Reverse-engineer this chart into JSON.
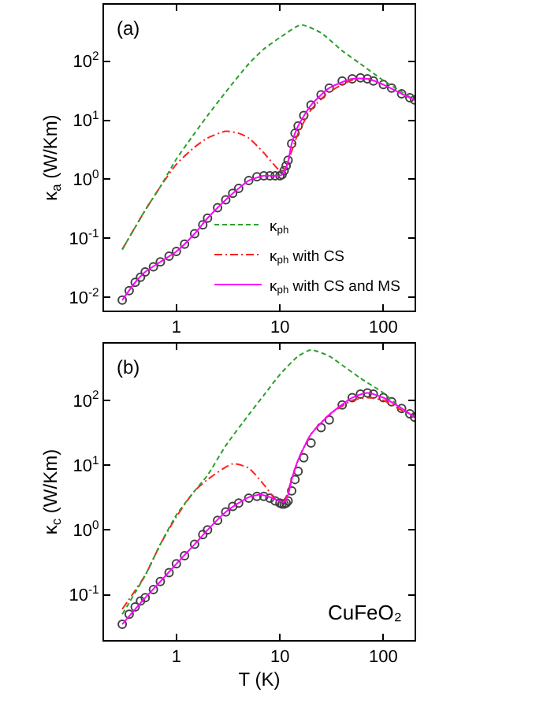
{
  "chart_data": [
    {
      "type": "line",
      "ylabel": "κ$_{a}$ (W/Km)",
      "annotations": [
        "(a)"
      ],
      "log": "xy",
      "legend": "bottom right",
      "grid": false,
      "xlim": [
        0.2,
        200
      ],
      "ylim": [
        0.006,
        900
      ],
      "xticks": [
        1,
        10,
        100
      ],
      "yticks": [
        {
          "value": 0.01,
          "label": "10$^{-2}$"
        },
        {
          "value": 0.1,
          "label": "10$^{-1}$"
        },
        {
          "value": 1,
          "label": "10$^{0}$"
        },
        {
          "value": 10,
          "label": "10$^{1}$"
        },
        {
          "value": 100,
          "label": "10$^{2}$"
        }
      ],
      "series": [
        {
          "type": "scatter",
          "marker": "circle",
          "color": "#404040",
          "x": [
            0.3,
            0.35,
            0.4,
            0.45,
            0.5,
            0.6,
            0.7,
            0.85,
            1,
            1.2,
            1.5,
            1.8,
            2,
            2.5,
            3,
            3.5,
            4,
            5,
            6,
            7,
            8,
            9,
            10,
            10.5,
            11,
            11.5,
            12,
            13,
            14,
            15,
            17,
            20,
            25,
            30,
            40,
            50,
            60,
            70,
            80,
            100,
            120,
            150,
            180,
            200
          ],
          "values": [
            0.009,
            0.013,
            0.018,
            0.022,
            0.027,
            0.033,
            0.04,
            0.05,
            0.06,
            0.08,
            0.12,
            0.17,
            0.22,
            0.33,
            0.45,
            0.58,
            0.7,
            0.95,
            1.1,
            1.15,
            1.15,
            1.15,
            1.15,
            1.2,
            1.4,
            1.7,
            2.1,
            4,
            6,
            8,
            12,
            18,
            27,
            35,
            46,
            50,
            52,
            50,
            46,
            40,
            35,
            28,
            24,
            22
          ]
        },
        {
          "name": "κ$_{ph}$",
          "color": "#2ca02c",
          "line_style": "dashed",
          "marker": "none",
          "x": [
            0.3,
            0.5,
            0.7,
            1,
            1.5,
            2,
            3,
            5,
            7,
            10,
            16,
            25,
            40,
            60,
            100,
            150,
            200
          ],
          "values": [
            0.065,
            0.3,
            0.75,
            2.2,
            6,
            12,
            30,
            90,
            160,
            250,
            410,
            300,
            150,
            90,
            47,
            30,
            22
          ]
        },
        {
          "name": "κ$_{ph}$ with CS",
          "color": "#ff2020",
          "line_style": "dotted",
          "marker": "none",
          "x": [
            0.3,
            0.5,
            0.7,
            1,
            1.5,
            2,
            3,
            4,
            5,
            7,
            10,
            11,
            13,
            15,
            20,
            30,
            50,
            70,
            100
          ],
          "values": [
            0.065,
            0.3,
            0.75,
            1.8,
            3.5,
            5,
            6.5,
            6,
            5,
            2.8,
            1.4,
            1.4,
            3,
            6,
            15,
            30,
            48,
            50,
            40
          ]
        },
        {
          "name": "κ$_{ph}$ with CS and MS",
          "color": "#ff00ff",
          "line_style": "solid",
          "marker": "none",
          "x": [
            0.3,
            0.4,
            0.5,
            0.7,
            1,
            1.5,
            2,
            3,
            4,
            5,
            7,
            10,
            11,
            12,
            13,
            15,
            20,
            30,
            50,
            70,
            100,
            150,
            200
          ],
          "values": [
            0.009,
            0.018,
            0.027,
            0.04,
            0.06,
            0.12,
            0.22,
            0.45,
            0.7,
            0.95,
            1.15,
            1.15,
            1.3,
            2,
            4,
            8,
            18,
            35,
            50,
            50,
            40,
            28,
            22
          ]
        }
      ]
    },
    {
      "type": "line",
      "xlabel": "T (K)",
      "ylabel": "κ$_{c}$ (W/Km)",
      "annotations": [
        "(b)",
        "CuFeO₂"
      ],
      "log": "xy",
      "legend": false,
      "grid": false,
      "xlim": [
        0.2,
        200
      ],
      "ylim": [
        0.02,
        750
      ],
      "xticks": [
        1,
        10,
        100
      ],
      "yticks": [
        {
          "value": 0.1,
          "label": "10$^{-1}$"
        },
        {
          "value": 1,
          "label": "10$^{0}$"
        },
        {
          "value": 10,
          "label": "10$^{1}$"
        },
        {
          "value": 100,
          "label": "10$^{2}$"
        }
      ],
      "series": [
        {
          "type": "scatter",
          "marker": "circle",
          "color": "#404040",
          "x": [
            0.3,
            0.35,
            0.4,
            0.45,
            0.5,
            0.6,
            0.7,
            0.85,
            1,
            1.2,
            1.5,
            1.8,
            2,
            2.5,
            3,
            3.5,
            4,
            5,
            6,
            7,
            8,
            9,
            10,
            10.5,
            11,
            11.5,
            12,
            13,
            14,
            15,
            17,
            20,
            25,
            30,
            40,
            50,
            60,
            70,
            80,
            100,
            120,
            150,
            180,
            200
          ],
          "values": [
            0.035,
            0.05,
            0.065,
            0.08,
            0.09,
            0.12,
            0.16,
            0.22,
            0.3,
            0.4,
            0.6,
            0.85,
            1,
            1.4,
            1.9,
            2.3,
            2.6,
            3.1,
            3.3,
            3.3,
            3.1,
            2.8,
            2.6,
            2.5,
            2.5,
            2.6,
            2.8,
            4,
            6,
            8,
            13,
            22,
            38,
            50,
            85,
            110,
            125,
            130,
            125,
            110,
            95,
            75,
            62,
            55
          ]
        },
        {
          "color": "#2ca02c",
          "line_style": "dashed",
          "marker": "none",
          "x": [
            0.3,
            0.5,
            0.7,
            1,
            1.5,
            2,
            3,
            5,
            7,
            10,
            15,
            20,
            30,
            40,
            60,
            100,
            150,
            200
          ],
          "values": [
            0.05,
            0.2,
            0.6,
            1.7,
            4,
            7,
            20,
            60,
            120,
            250,
            480,
            600,
            480,
            350,
            220,
            130,
            75,
            55
          ]
        },
        {
          "color": "#ff2020",
          "line_style": "dotted",
          "marker": "none",
          "x": [
            0.3,
            0.5,
            0.7,
            1,
            1.5,
            2,
            3.5,
            5,
            7,
            9,
            10,
            11,
            13,
            15,
            20,
            30,
            50,
            70,
            100,
            150,
            200
          ],
          "values": [
            0.06,
            0.2,
            0.6,
            1.6,
            4,
            6,
            10.5,
            9,
            5,
            3,
            2.7,
            2.8,
            6,
            12,
            30,
            60,
            100,
            110,
            100,
            70,
            55
          ]
        },
        {
          "color": "#ff00ff",
          "line_style": "solid",
          "marker": "none",
          "x": [
            0.3,
            0.5,
            0.7,
            1,
            1.5,
            2,
            3,
            4,
            5,
            6.5,
            8,
            10,
            11,
            12,
            13,
            15,
            20,
            30,
            50,
            70,
            100,
            150,
            200
          ],
          "values": [
            0.035,
            0.09,
            0.16,
            0.3,
            0.6,
            1,
            1.9,
            2.6,
            3.2,
            3.5,
            3.2,
            2.8,
            2.7,
            3.5,
            6,
            12,
            30,
            60,
            110,
            130,
            110,
            75,
            55
          ]
        }
      ]
    }
  ]
}
